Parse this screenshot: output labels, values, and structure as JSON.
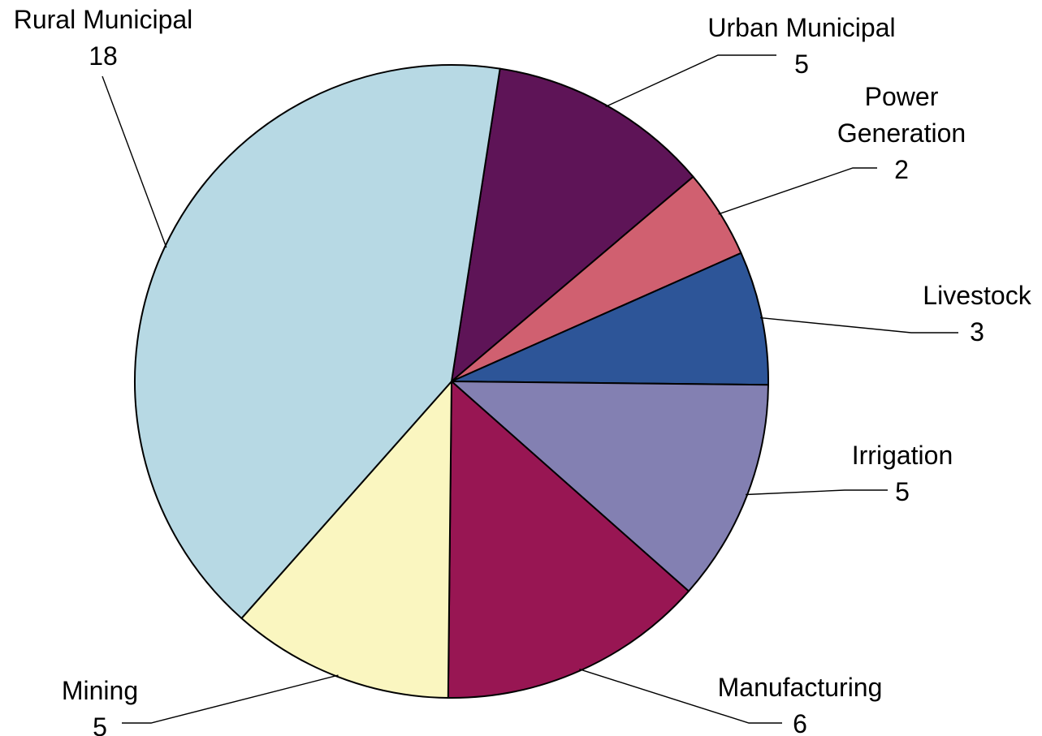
{
  "chart_data": {
    "type": "pie",
    "title": "",
    "slices": [
      {
        "label": [
          "Urban Municipal"
        ],
        "value": 5,
        "color": "#5e1457"
      },
      {
        "label": [
          "Power",
          "Generation"
        ],
        "value": 2,
        "color": "#d06070"
      },
      {
        "label": [
          "Livestock"
        ],
        "value": 3,
        "color": "#2d5598"
      },
      {
        "label": [
          "Irrigation"
        ],
        "value": 5,
        "color": "#8380b2"
      },
      {
        "label": [
          "Manufacturing"
        ],
        "value": 6,
        "color": "#981653"
      },
      {
        "label": [
          "Mining"
        ],
        "value": 5,
        "color": "#faf6c0"
      },
      {
        "label": [
          "Rural Municipal"
        ],
        "value": 18,
        "color": "#b7d9e4"
      }
    ]
  }
}
